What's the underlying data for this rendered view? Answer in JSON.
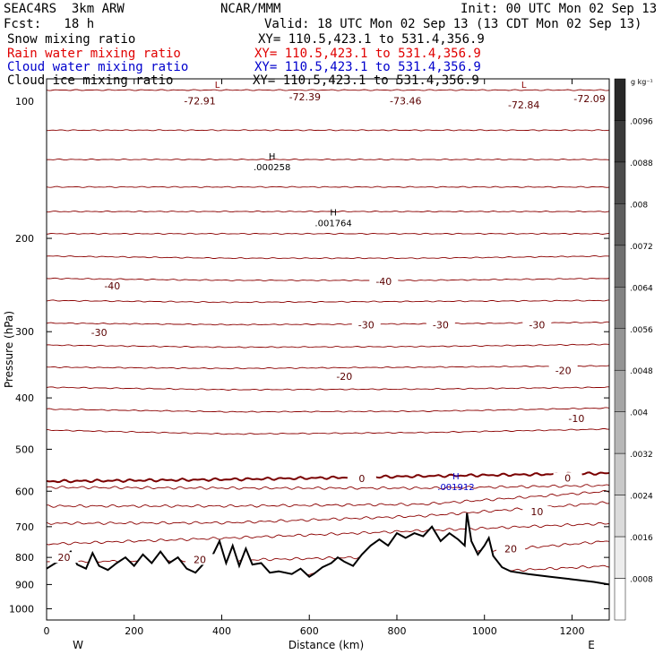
{
  "header": {
    "title_left": "SEAC4RS  3km ARW",
    "title_center": "NCAR/MMM",
    "init": "Init: 00 UTC Mon 02 Sep 13",
    "fcst": "Fcst:   18 h",
    "valid": "Valid: 18 UTC Mon 02 Sep 13 (13 CDT Mon 02 Sep 13)"
  },
  "fields": [
    {
      "name": "Snow mixing ratio",
      "xy": "XY= 110.5,423.1 to 531.4,356.9",
      "color": "#000000"
    },
    {
      "name": "Rain water mixing ratio",
      "xy": "XY= 110.5,423.1 to 531.4,356.9",
      "color": "#e00000"
    },
    {
      "name": "Cloud water mixing ratio",
      "xy": "XY= 110.5,423.1 to 531.4,356.9",
      "color": "#0000cc"
    },
    {
      "name": "Cloud ice mixing ratio",
      "xy": "XY= 110.5,423.1 to 531.4,356.9",
      "color": "#000000"
    }
  ],
  "colors": {
    "isotherm": "#8b0000",
    "freezing": "#7a0000",
    "terrain": "#000000",
    "cloud_water": "#0000cc"
  },
  "chart_data": {
    "type": "line",
    "xlabel": "Distance (km)",
    "ylabel": "Pressure (hPa)",
    "xlim": [
      0,
      1285
    ],
    "ylim": [
      100,
      1050
    ],
    "y_log": true,
    "x_ticks": [
      "0",
      "200",
      "400",
      "600",
      "800",
      "1000",
      "1200"
    ],
    "x_tick_values": [
      0,
      200,
      400,
      600,
      800,
      1000,
      1200
    ],
    "y_ticks": [
      "200",
      "300",
      "400",
      "500",
      "600",
      "700",
      "800",
      "900",
      "1000"
    ],
    "y_tick_values": [
      200,
      300,
      400,
      500,
      600,
      700,
      800,
      900,
      1000
    ],
    "y_tick_clipped": "100",
    "axis_west": "W",
    "axis_east": "E",
    "isotherms_C": [
      {
        "t": -75,
        "p": [
          105,
          105,
          105,
          105
        ]
      },
      {
        "t": -70,
        "p": [
          125,
          125,
          125,
          125
        ]
      },
      {
        "t": -65,
        "p": [
          142,
          142,
          142,
          142
        ]
      },
      {
        "t": -60,
        "p": [
          160,
          160,
          160,
          160
        ]
      },
      {
        "t": -55,
        "p": [
          178,
          178,
          178,
          178
        ]
      },
      {
        "t": -50,
        "p": [
          196,
          196,
          196,
          196
        ]
      },
      {
        "t": -45,
        "p": [
          216,
          218,
          218,
          216
        ]
      },
      {
        "t": -40,
        "p": [
          238,
          240,
          240,
          238
        ]
      },
      {
        "t": -35,
        "p": [
          262,
          264,
          263,
          262
        ]
      },
      {
        "t": -30,
        "p": [
          289,
          291,
          290,
          288
        ]
      },
      {
        "t": -25,
        "p": [
          318,
          321,
          320,
          317
        ]
      },
      {
        "t": -20,
        "p": [
          350,
          352,
          350,
          348
        ]
      },
      {
        "t": -15,
        "p": [
          382,
          386,
          385,
          382
        ]
      },
      {
        "t": -10,
        "p": [
          420,
          425,
          424,
          418
        ]
      },
      {
        "t": -5,
        "p": [
          460,
          468,
          465,
          458
        ]
      },
      {
        "t": 0,
        "p": [
          575,
          570,
          562,
          555
        ]
      },
      {
        "t": 5,
        "p": [
          590,
          592,
          592,
          585
        ]
      },
      {
        "t": 10,
        "p": [
          640,
          640,
          635,
          600
        ]
      },
      {
        "t": 15,
        "p": [
          690,
          688,
          668,
          630
        ]
      },
      {
        "t": 20,
        "p": [
          755,
          735,
          712,
          690
        ]
      },
      {
        "t": 25,
        "p": [
          815,
          810,
          795,
          745
        ]
      },
      {
        "t": 30,
        "p": [
          855,
          860,
          862,
          830
        ]
      }
    ],
    "isotherm_x": [
      0,
      420,
      860,
      1285
    ],
    "contour_labels": [
      {
        "text": "-72.91",
        "x": 350,
        "p": 110
      },
      {
        "text": "-72.39",
        "x": 590,
        "p": 108
      },
      {
        "text": "-73.46",
        "x": 820,
        "p": 110
      },
      {
        "text": "-72.84",
        "x": 1090,
        "p": 112
      },
      {
        "text": "-72.09",
        "x": 1240,
        "p": 109
      },
      {
        "text": "-40",
        "x": 150,
        "p": 246
      },
      {
        "text": "-40",
        "x": 770,
        "p": 241
      },
      {
        "text": "-30",
        "x": 120,
        "p": 301
      },
      {
        "text": "-30",
        "x": 730,
        "p": 291
      },
      {
        "text": "-30",
        "x": 900,
        "p": 291
      },
      {
        "text": "-30",
        "x": 1120,
        "p": 291
      },
      {
        "text": "-20",
        "x": 680,
        "p": 364
      },
      {
        "text": "-20",
        "x": 1180,
        "p": 355
      },
      {
        "text": "-10",
        "x": 1210,
        "p": 437
      },
      {
        "text": "0",
        "x": 720,
        "p": 568
      },
      {
        "text": "0",
        "x": 1190,
        "p": 566
      },
      {
        "text": "10",
        "x": 1120,
        "p": 655
      },
      {
        "text": "20",
        "x": 350,
        "p": 807
      },
      {
        "text": "20",
        "x": 1060,
        "p": 770
      },
      {
        "text": "20",
        "x": 40,
        "p": 800
      }
    ],
    "extrema": [
      {
        "type": "H",
        "value": ".000258",
        "x": 515,
        "p": 142,
        "color": "#000000"
      },
      {
        "type": "H",
        "value": ".001764",
        "x": 655,
        "p": 181,
        "color": "#000000"
      },
      {
        "type": "H",
        "value": ".001912",
        "x": 935,
        "p": 570,
        "color": "#0000cc"
      },
      {
        "type": "L",
        "value": "",
        "x": 390,
        "p": 104,
        "color": "#8b0000"
      },
      {
        "type": "L",
        "value": "",
        "x": 1090,
        "p": 104,
        "color": "#8b0000"
      }
    ],
    "terrain": {
      "x": [
        0,
        20,
        40,
        55,
        70,
        90,
        105,
        120,
        140,
        160,
        180,
        200,
        220,
        240,
        260,
        280,
        300,
        320,
        340,
        360,
        380,
        395,
        410,
        425,
        440,
        455,
        470,
        490,
        510,
        530,
        560,
        580,
        600,
        610,
        630,
        650,
        665,
        680,
        700,
        720,
        740,
        760,
        780,
        800,
        820,
        840,
        860,
        880,
        900,
        920,
        940,
        955,
        960,
        970,
        985,
        1000,
        1010,
        1020,
        1040,
        1060,
        1100,
        1150,
        1200,
        1250,
        1285
      ],
      "p": [
        840,
        820,
        805,
        780,
        825,
        840,
        785,
        830,
        845,
        820,
        800,
        830,
        790,
        820,
        780,
        820,
        800,
        840,
        855,
        820,
        790,
        745,
        820,
        760,
        830,
        770,
        825,
        820,
        855,
        850,
        860,
        840,
        870,
        860,
        835,
        820,
        800,
        815,
        830,
        790,
        760,
        740,
        760,
        720,
        735,
        720,
        730,
        700,
        745,
        720,
        740,
        760,
        660,
        745,
        790,
        760,
        735,
        795,
        835,
        850,
        860,
        870,
        880,
        890,
        900
      ]
    },
    "colorbar": {
      "unit": "g kg⁻¹",
      "labels": [
        ".0096",
        ".0088",
        ".008",
        ".0072",
        ".0064",
        ".0056",
        ".0048",
        ".004",
        ".0032",
        ".0024",
        ".0016",
        ".0008"
      ],
      "levels": [
        0.0096,
        0.0088,
        0.008,
        0.0072,
        0.0064,
        0.0056,
        0.0048,
        0.004,
        0.0032,
        0.0024,
        0.0016,
        0.0008
      ]
    }
  }
}
